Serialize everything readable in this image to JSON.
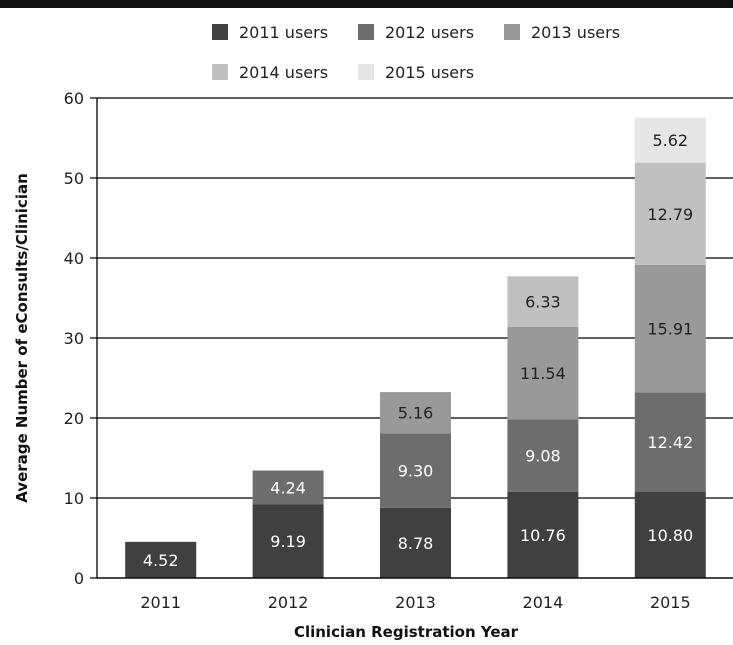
{
  "chart_data": {
    "type": "bar",
    "stacked": true,
    "categories": [
      "2011",
      "2012",
      "2013",
      "2014",
      "2015"
    ],
    "series": [
      {
        "name": "2011 users",
        "color": "#404040",
        "values": [
          4.52,
          9.19,
          8.78,
          10.76,
          10.8
        ]
      },
      {
        "name": "2012 users",
        "color": "#6d6d6d",
        "values": [
          null,
          4.24,
          9.3,
          9.08,
          12.42
        ]
      },
      {
        "name": "2013 users",
        "color": "#999999",
        "values": [
          null,
          null,
          5.16,
          11.54,
          15.91
        ]
      },
      {
        "name": "2014 users",
        "color": "#c0c0c0",
        "values": [
          null,
          null,
          null,
          6.33,
          12.79
        ]
      },
      {
        "name": "2015 users",
        "color": "#e6e6e6",
        "values": [
          null,
          null,
          null,
          null,
          5.62
        ]
      }
    ],
    "data_labels": [
      [
        "4.52",
        "9.19",
        "8.78",
        "10.76",
        "10.80"
      ],
      [
        null,
        "4.24",
        "9.30",
        "9.08",
        "12.42"
      ],
      [
        null,
        null,
        "5.16",
        "11.54",
        "15.91"
      ],
      [
        null,
        null,
        null,
        "6.33",
        "12.79"
      ],
      [
        null,
        null,
        null,
        null,
        "5.62"
      ]
    ],
    "xlabel": "Clinician Registration Year",
    "ylabel": "Average Number of eConsults/Clinician",
    "ylim": [
      0,
      60
    ],
    "yticks": [
      0,
      10,
      20,
      30,
      40,
      50,
      60
    ],
    "grid": "horizontal",
    "legend_position": "top"
  }
}
